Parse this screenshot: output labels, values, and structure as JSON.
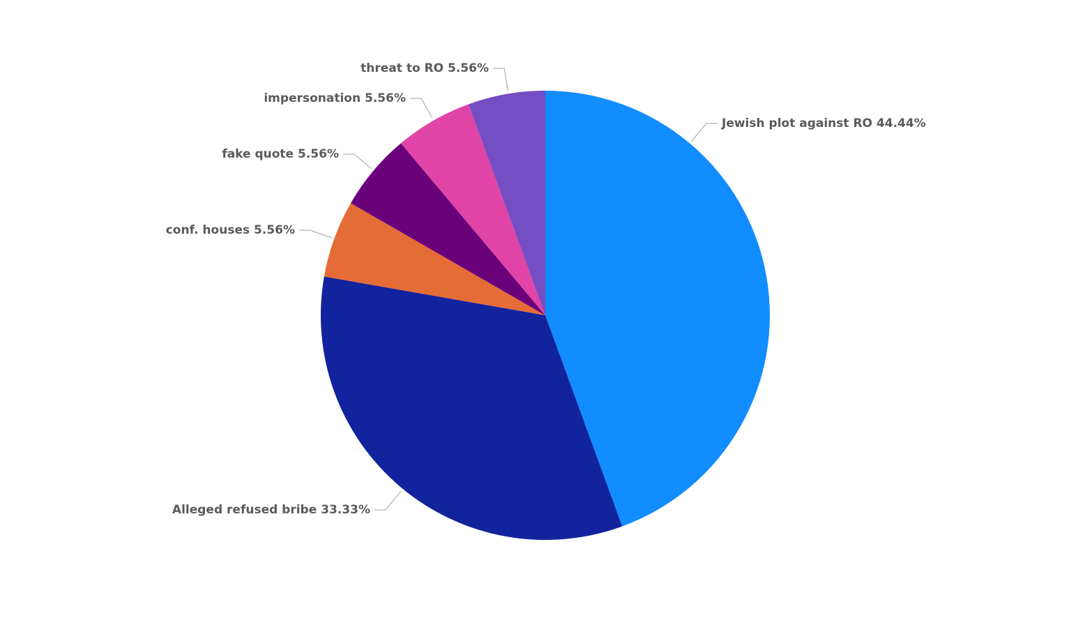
{
  "chart_data": {
    "type": "pie",
    "categories": [
      "Jewish plot against RO",
      "Alleged refused bribe",
      "conf. houses",
      "fake quote",
      "impersonation",
      "threat to RO"
    ],
    "values": [
      44.44,
      33.33,
      5.56,
      5.56,
      5.56,
      5.56
    ],
    "value_labels": [
      "44.44%",
      "33.33%",
      "5.56%",
      "5.56%",
      "5.56%",
      "5.56%"
    ],
    "colors": [
      "#118dff",
      "#12239e",
      "#e66c37",
      "#6b007b",
      "#e044a7",
      "#744ec2"
    ]
  }
}
